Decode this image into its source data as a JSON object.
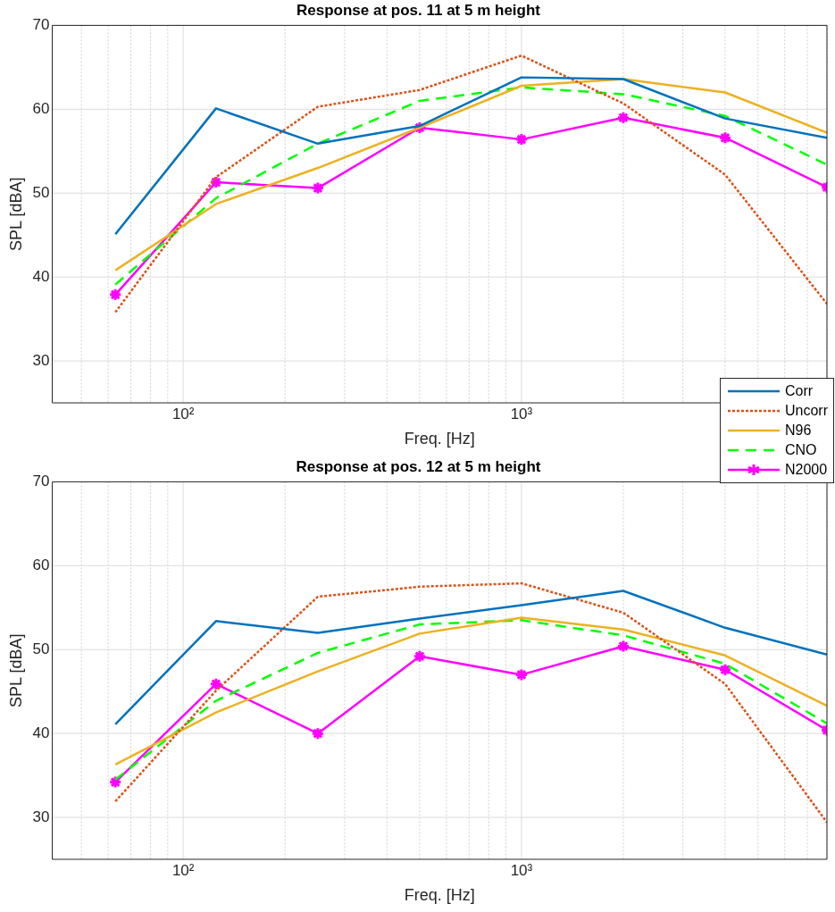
{
  "chart_data": [
    {
      "type": "line",
      "title": "Response at pos. 11 at 5 m height",
      "xlabel": "Freq. [Hz]",
      "ylabel": "SPL [dBA]",
      "log": "x",
      "grid": true,
      "legend": "bottom right",
      "x": [
        63,
        125,
        250,
        500,
        1000,
        2000,
        4000,
        8000
      ],
      "xlim": [
        41,
        8000
      ],
      "xticks": [
        {
          "value": 50,
          "label": null
        },
        {
          "value": 60,
          "label": null
        },
        {
          "value": 70,
          "label": null
        },
        {
          "value": 80,
          "label": null
        },
        {
          "value": 90,
          "label": null
        },
        {
          "value": 100,
          "label": "10²"
        },
        {
          "value": 200,
          "label": null
        },
        {
          "value": 300,
          "label": null
        },
        {
          "value": 400,
          "label": null
        },
        {
          "value": 500,
          "label": null
        },
        {
          "value": 600,
          "label": null
        },
        {
          "value": 700,
          "label": null
        },
        {
          "value": 800,
          "label": null
        },
        {
          "value": 900,
          "label": null
        },
        {
          "value": 1000,
          "label": "10³"
        },
        {
          "value": 2000,
          "label": null
        },
        {
          "value": 3000,
          "label": null
        },
        {
          "value": 4000,
          "label": null
        },
        {
          "value": 5000,
          "label": null
        },
        {
          "value": 6000,
          "label": null
        },
        {
          "value": 7000,
          "label": null
        },
        {
          "value": 8000,
          "label": null
        }
      ],
      "ylim": [
        25,
        70
      ],
      "yticks": [
        30,
        40,
        50,
        60,
        70
      ],
      "series": [
        {
          "name": "Corr",
          "color": "#0072bd",
          "line_style": "solid",
          "marker": "none",
          "values": [
            45.1,
            60.1,
            55.9,
            58.0,
            63.8,
            63.6,
            58.9,
            56.6
          ]
        },
        {
          "name": "Uncorr",
          "color": "#d95319",
          "line_style": "dotted",
          "marker": "none",
          "values": [
            35.8,
            51.9,
            60.3,
            62.3,
            66.4,
            60.7,
            52.2,
            36.8
          ]
        },
        {
          "name": "N96",
          "color": "#edb120",
          "line_style": "solid",
          "marker": "none",
          "values": [
            40.8,
            48.7,
            53.0,
            57.8,
            62.8,
            63.6,
            62.0,
            57.2
          ]
        },
        {
          "name": "CNO",
          "color": "#00ff00",
          "line_style": "dashed",
          "marker": "none",
          "values": [
            39.1,
            49.4,
            55.9,
            61.0,
            62.6,
            61.8,
            59.2,
            53.4
          ]
        },
        {
          "name": "N2000",
          "color": "#ff00ff",
          "line_style": "solid",
          "marker": "cross",
          "values": [
            37.9,
            51.3,
            50.6,
            57.8,
            56.4,
            59.0,
            56.6,
            50.7
          ]
        }
      ]
    },
    {
      "type": "line",
      "title": "Response at pos. 12 at 5 m height",
      "xlabel": "Freq. [Hz]",
      "ylabel": "SPL [dBA]",
      "log": "x",
      "grid": true,
      "x": [
        63,
        125,
        250,
        500,
        1000,
        2000,
        4000,
        8000
      ],
      "xlim": [
        41,
        8000
      ],
      "xticks": [
        {
          "value": 50,
          "label": null
        },
        {
          "value": 60,
          "label": null
        },
        {
          "value": 70,
          "label": null
        },
        {
          "value": 80,
          "label": null
        },
        {
          "value": 90,
          "label": null
        },
        {
          "value": 100,
          "label": "10²"
        },
        {
          "value": 200,
          "label": null
        },
        {
          "value": 300,
          "label": null
        },
        {
          "value": 400,
          "label": null
        },
        {
          "value": 500,
          "label": null
        },
        {
          "value": 600,
          "label": null
        },
        {
          "value": 700,
          "label": null
        },
        {
          "value": 800,
          "label": null
        },
        {
          "value": 900,
          "label": null
        },
        {
          "value": 1000,
          "label": "10³"
        },
        {
          "value": 2000,
          "label": null
        },
        {
          "value": 3000,
          "label": null
        },
        {
          "value": 4000,
          "label": null
        },
        {
          "value": 5000,
          "label": null
        },
        {
          "value": 6000,
          "label": null
        },
        {
          "value": 7000,
          "label": null
        },
        {
          "value": 8000,
          "label": null
        }
      ],
      "ylim": [
        25,
        70
      ],
      "yticks": [
        30,
        40,
        50,
        60,
        70
      ],
      "series": [
        {
          "color": "#0072bd",
          "line_style": "solid",
          "marker": "none",
          "values": [
            41.1,
            53.4,
            52.0,
            53.7,
            55.3,
            57.0,
            52.6,
            49.4
          ]
        },
        {
          "color": "#d95319",
          "line_style": "dotted",
          "marker": "none",
          "values": [
            31.9,
            45.1,
            56.3,
            57.5,
            57.9,
            54.4,
            45.9,
            29.4
          ]
        },
        {
          "color": "#edb120",
          "line_style": "solid",
          "marker": "none",
          "values": [
            36.3,
            42.5,
            47.4,
            51.9,
            53.8,
            52.4,
            49.3,
            43.3
          ]
        },
        {
          "color": "#00ff00",
          "line_style": "dashed",
          "marker": "none",
          "values": [
            34.5,
            43.9,
            49.6,
            53.0,
            53.5,
            51.7,
            48.3,
            41.2
          ]
        },
        {
          "color": "#ff00ff",
          "line_style": "solid",
          "marker": "cross",
          "values": [
            34.2,
            45.9,
            40.0,
            49.2,
            47.0,
            50.4,
            47.6,
            40.4
          ]
        }
      ]
    }
  ]
}
